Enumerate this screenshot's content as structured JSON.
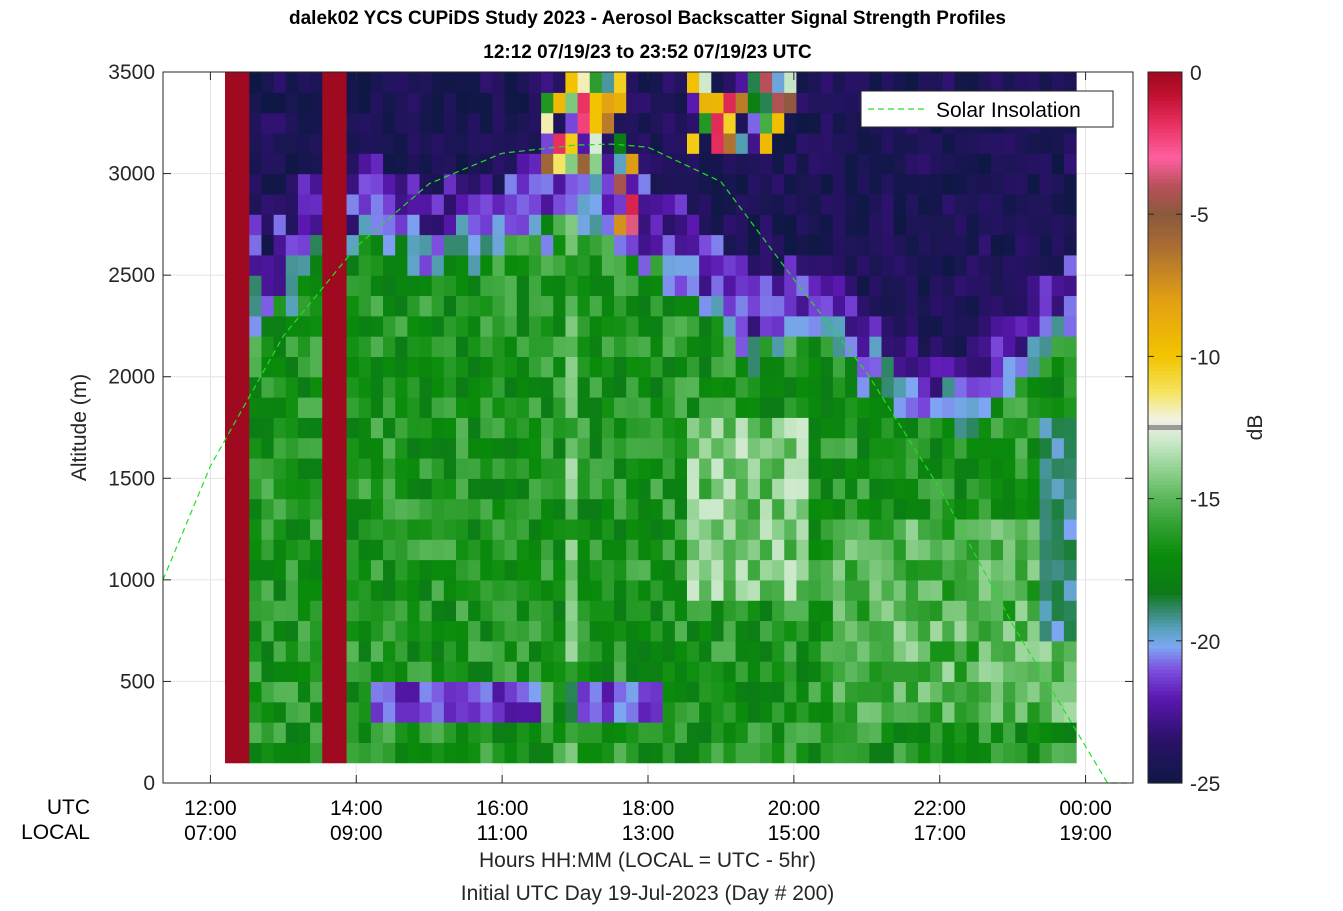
{
  "chart_data": {
    "type": "heatmap",
    "title": "dalek02 YCS CUPiDS Study 2023 - Aerosol Backscatter Signal Strength Profiles",
    "subtitle": "12:12 07/19/23 to 23:52 07/19/23  UTC",
    "ylabel": "Altitude (m)",
    "ylim": [
      0,
      3500
    ],
    "yticks": [
      0,
      500,
      1000,
      1500,
      2000,
      2500,
      3000,
      3500
    ],
    "xlim_hours": [
      11.35,
      24.65
    ],
    "xticks_hours": [
      12,
      14,
      16,
      18,
      20,
      22,
      24
    ],
    "xtick_labels_utc": [
      "12:00",
      "14:00",
      "16:00",
      "18:00",
      "20:00",
      "22:00",
      "00:00"
    ],
    "xtick_labels_local": [
      "07:00",
      "09:00",
      "11:00",
      "13:00",
      "15:00",
      "17:00",
      "19:00"
    ],
    "xrow_labels": [
      "UTC",
      "LOCAL"
    ],
    "xlabel": "Hours HH:MM  (LOCAL = UTC - 5hr)",
    "xlabel2": "Initial UTC Day 19-Jul-2023 (Day # 200)",
    "colorbar": {
      "label": "dB",
      "range": [
        -25,
        0
      ],
      "ticks": [
        0,
        -5,
        -10,
        -15,
        -20,
        -25
      ],
      "marker_value": -12.5
    },
    "legend": {
      "entries": [
        "Solar Insolation"
      ],
      "placement": "top-right"
    },
    "solar_insolation_curve": {
      "x_hours": [
        11.35,
        12.0,
        13.0,
        14.0,
        15.0,
        16.0,
        17.0,
        17.5,
        18.0,
        19.0,
        20.0,
        21.0,
        22.0,
        23.0,
        24.0,
        24.3,
        24.65
      ],
      "y_m": [
        1000,
        1560,
        2200,
        2640,
        2950,
        3100,
        3140,
        3145,
        3130,
        2960,
        2480,
        2020,
        1450,
        780,
        180,
        0,
        0
      ]
    },
    "profile_columns": {
      "time_step_hours": 0.1667,
      "altitude_range_m": [
        100,
        3500
      ],
      "notes": "Each column is one 10-minute backscatter profile; colour = signal strength (dB). Dark red columns at 12:12–12:30 and 13:30–13:50 UTC are saturated (0 dB)."
    }
  }
}
